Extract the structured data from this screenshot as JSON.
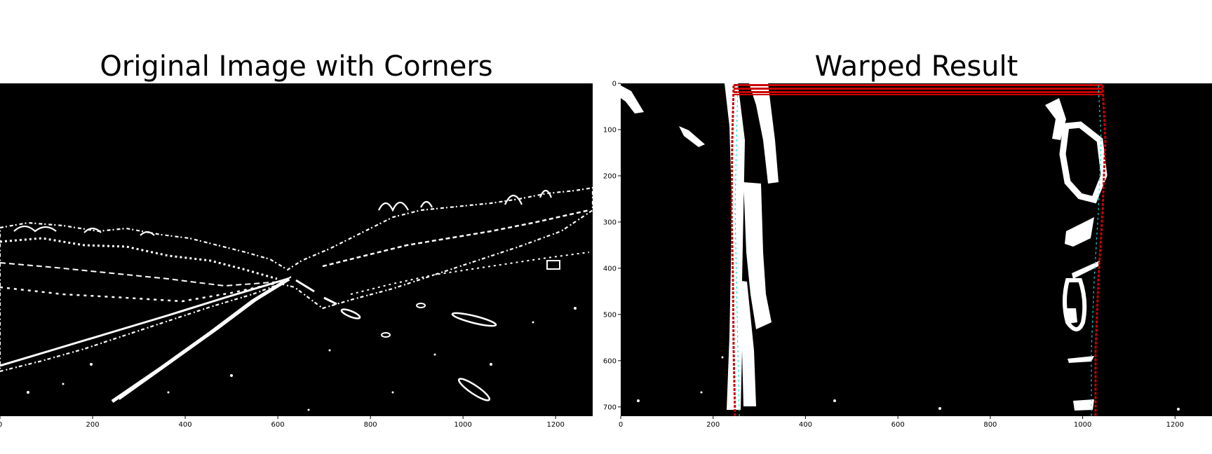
{
  "panels": [
    {
      "title": "Original Image with Corners",
      "chart_data": {
        "type": "image",
        "title": "Original Image with Corners",
        "xlabel": "",
        "ylabel": "",
        "xlim": [
          0,
          1280
        ],
        "ylim": [
          720,
          0
        ],
        "xticks": [
          0,
          200,
          400,
          600,
          800,
          1000,
          1200
        ],
        "yticks": [],
        "background": "#000000",
        "foreground": "#ffffff"
      }
    },
    {
      "title": "Warped Result",
      "chart_data": {
        "type": "image",
        "title": "Warped Result",
        "xlabel": "",
        "ylabel": "",
        "xlim": [
          0,
          1280
        ],
        "ylim": [
          720,
          0
        ],
        "xticks": [
          0,
          200,
          400,
          600,
          800,
          1000,
          1200
        ],
        "yticks": [
          0,
          100,
          200,
          300,
          400,
          500,
          600,
          700
        ],
        "background": "#000000",
        "foreground": "#ffffff",
        "overlay_colors": {
          "lane_fit": "#cc0000",
          "edge": "#00e5e5"
        }
      }
    }
  ]
}
